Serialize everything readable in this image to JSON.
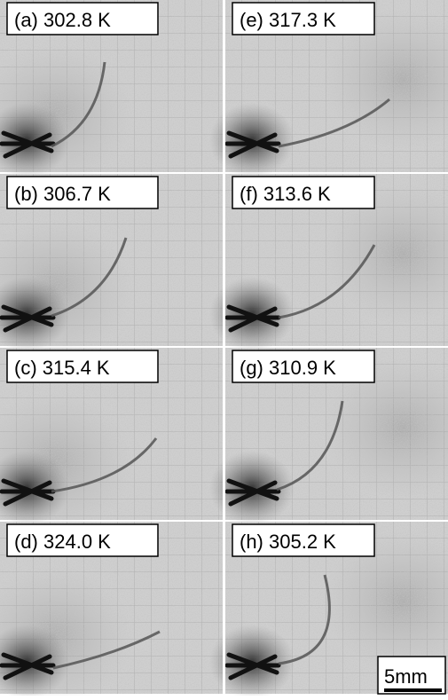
{
  "panels": [
    {
      "label": "(a) 302.8 K"
    },
    {
      "label": "(b) 306.7 K"
    },
    {
      "label": "(c) 315.4 K"
    },
    {
      "label": "(d) 324.0 K"
    },
    {
      "label": "(e) 317.3 K"
    },
    {
      "label": "(f)  313.6 K"
    },
    {
      "label": "(g) 310.9 K"
    },
    {
      "label": "(h) 305.2 K"
    }
  ],
  "scale_bar": "5mm"
}
